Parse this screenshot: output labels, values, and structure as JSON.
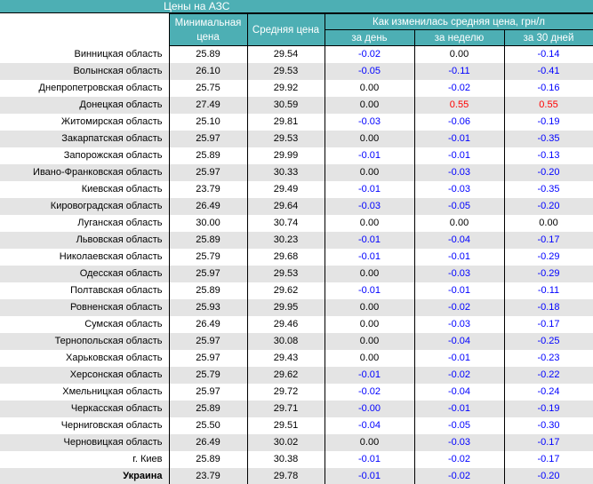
{
  "title_bar": {
    "title": "Цены на АЗС"
  },
  "colors": {
    "header_teal": "#4dafb4",
    "stripe_gray": "#e4e4e4",
    "negative_blue": "#0000ff",
    "positive_red": "#ff0000",
    "border_black": "#000000"
  },
  "headers": {
    "min_price": "Минимальная цена",
    "avg_price": "Средняя цена",
    "change_group": "Как изменилась средняя цена, грн/л",
    "per_day": "за день",
    "per_week": "за неделю",
    "per_30_days": "за 30 дней"
  },
  "chart_data": {
    "type": "table",
    "title": "Цены на АЗС",
    "columns": [
      "",
      "Минимальная цена",
      "Средняя цена",
      "за день",
      "за неделю",
      "за 30 дней"
    ],
    "change_group_header": "Как изменилась средняя цена, грн/л",
    "rows": [
      {
        "region": "Винницкая область",
        "min": "25.89",
        "avg": "29.54",
        "day": "-0.02",
        "week": "0.00",
        "month": "-0.14"
      },
      {
        "region": "Волынская область",
        "min": "26.10",
        "avg": "29.53",
        "day": "-0.05",
        "week": "-0.11",
        "month": "-0.41"
      },
      {
        "region": "Днепропетровская область",
        "min": "25.75",
        "avg": "29.92",
        "day": "0.00",
        "week": "-0.02",
        "month": "-0.16"
      },
      {
        "region": "Донецкая область",
        "min": "27.49",
        "avg": "30.59",
        "day": "0.00",
        "week": "0.55",
        "month": "0.55"
      },
      {
        "region": "Житомирская область",
        "min": "25.10",
        "avg": "29.81",
        "day": "-0.03",
        "week": "-0.06",
        "month": "-0.19"
      },
      {
        "region": "Закарпатская область",
        "min": "25.97",
        "avg": "29.53",
        "day": "0.00",
        "week": "-0.01",
        "month": "-0.35"
      },
      {
        "region": "Запорожская область",
        "min": "25.89",
        "avg": "29.99",
        "day": "-0.01",
        "week": "-0.01",
        "month": "-0.13"
      },
      {
        "region": "Ивано-Франковская область",
        "min": "25.97",
        "avg": "30.33",
        "day": "0.00",
        "week": "-0.03",
        "month": "-0.20"
      },
      {
        "region": "Киевская область",
        "min": "23.79",
        "avg": "29.49",
        "day": "-0.01",
        "week": "-0.03",
        "month": "-0.35"
      },
      {
        "region": "Кировоградская область",
        "min": "26.49",
        "avg": "29.64",
        "day": "-0.03",
        "week": "-0.05",
        "month": "-0.20"
      },
      {
        "region": "Луганская область",
        "min": "30.00",
        "avg": "30.74",
        "day": "0.00",
        "week": "0.00",
        "month": "0.00"
      },
      {
        "region": "Львовская область",
        "min": "25.89",
        "avg": "30.23",
        "day": "-0.01",
        "week": "-0.04",
        "month": "-0.17"
      },
      {
        "region": "Николаевская область",
        "min": "25.79",
        "avg": "29.68",
        "day": "-0.01",
        "week": "-0.01",
        "month": "-0.29"
      },
      {
        "region": "Одесская область",
        "min": "25.97",
        "avg": "29.53",
        "day": "0.00",
        "week": "-0.03",
        "month": "-0.29"
      },
      {
        "region": "Полтавская область",
        "min": "25.89",
        "avg": "29.62",
        "day": "-0.01",
        "week": "-0.01",
        "month": "-0.11"
      },
      {
        "region": "Ровненская область",
        "min": "25.93",
        "avg": "29.95",
        "day": "0.00",
        "week": "-0.02",
        "month": "-0.18"
      },
      {
        "region": "Сумская область",
        "min": "26.49",
        "avg": "29.46",
        "day": "0.00",
        "week": "-0.03",
        "month": "-0.17"
      },
      {
        "region": "Тернопольская область",
        "min": "25.97",
        "avg": "30.08",
        "day": "0.00",
        "week": "-0.04",
        "month": "-0.25"
      },
      {
        "region": "Харьковская область",
        "min": "25.97",
        "avg": "29.43",
        "day": "0.00",
        "week": "-0.01",
        "month": "-0.23"
      },
      {
        "region": "Херсонская область",
        "min": "25.79",
        "avg": "29.62",
        "day": "-0.01",
        "week": "-0.02",
        "month": "-0.22"
      },
      {
        "region": "Хмельницкая область",
        "min": "25.97",
        "avg": "29.72",
        "day": "-0.02",
        "week": "-0.04",
        "month": "-0.24"
      },
      {
        "region": "Черкасская область",
        "min": "25.89",
        "avg": "29.71",
        "day": "-0.00",
        "week": "-0.01",
        "month": "-0.19"
      },
      {
        "region": "Черниговская область",
        "min": "25.50",
        "avg": "29.51",
        "day": "-0.04",
        "week": "-0.05",
        "month": "-0.30"
      },
      {
        "region": "Черновицкая область",
        "min": "26.49",
        "avg": "30.02",
        "day": "0.00",
        "week": "-0.03",
        "month": "-0.17"
      },
      {
        "region": "г. Киев",
        "min": "25.89",
        "avg": "30.38",
        "day": "-0.01",
        "week": "-0.02",
        "month": "-0.17"
      },
      {
        "region": "Украина",
        "min": "23.79",
        "avg": "29.78",
        "day": "-0.01",
        "week": "-0.02",
        "month": "-0.20",
        "is_total": true
      }
    ]
  }
}
